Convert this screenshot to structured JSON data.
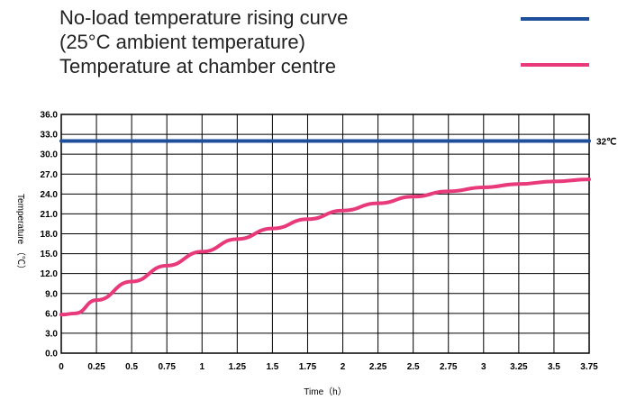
{
  "legend": {
    "title_lines": [
      "No-load temperature rising curve",
      "(25°C ambient temperature)",
      "Temperature at chamber centre"
    ]
  },
  "chart_data": {
    "type": "line",
    "xlabel": "Time（h）",
    "ylabel": "Temperature （℃）",
    "xlim": [
      0,
      3.75
    ],
    "ylim": [
      0,
      36
    ],
    "grid": true,
    "legend_position": "top-right",
    "x_ticks": [
      "0",
      "0.25",
      "0.5",
      "0.75",
      "1",
      "1.25",
      "1.5",
      "1.75",
      "2",
      "2.25",
      "2.5",
      "2.75",
      "3",
      "3.25",
      "3.5",
      "3.75"
    ],
    "y_ticks": [
      "0.0",
      "3.0",
      "6.0",
      "9.0",
      "12.0",
      "15.0",
      "18.0",
      "21.0",
      "24.0",
      "27.0",
      "30.0",
      "33.0",
      "36.0"
    ],
    "annotations": [
      {
        "text": "32℃",
        "x": 3.75,
        "y": 32
      }
    ],
    "series": [
      {
        "color": "#1f4e9a",
        "x": [
          0,
          3.75
        ],
        "y": [
          32,
          32
        ]
      },
      {
        "color": "#e83a7a",
        "x": [
          0,
          0.1,
          0.25,
          0.5,
          0.75,
          1.0,
          1.25,
          1.5,
          1.75,
          2.0,
          2.25,
          2.5,
          2.75,
          3.0,
          3.25,
          3.5,
          3.75
        ],
        "y": [
          5.8,
          6.0,
          8.0,
          10.8,
          13.2,
          15.3,
          17.2,
          18.8,
          20.2,
          21.5,
          22.6,
          23.6,
          24.4,
          25.0,
          25.5,
          25.9,
          26.2
        ]
      }
    ]
  }
}
